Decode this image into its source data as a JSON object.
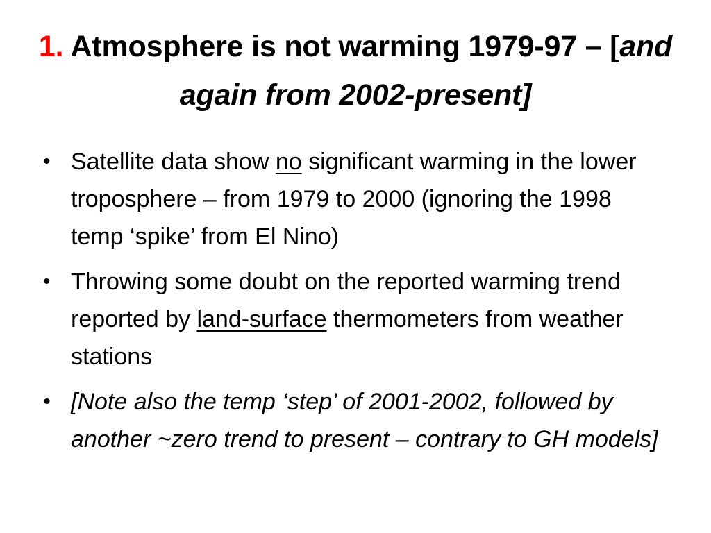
{
  "slide": {
    "title": {
      "number": "1.",
      "main": "Atmosphere is not warming 1979-97 – [",
      "italic": "and again from 2002-present]"
    },
    "bullets": [
      {
        "marker": "•",
        "pre": "Satellite data show ",
        "underlined": "no",
        "post": " significant warming in the lower troposphere – from 1979 to 2000 (ignoring the 1998 temp ‘spike’ from El Nino)"
      },
      {
        "marker": "•",
        "pre": "Throwing some doubt on the reported warming trend reported by ",
        "underlined": "land-surface",
        "post": " thermometers from weather stations"
      },
      {
        "marker": "•",
        "text": "[Note also the temp ‘step’ of 2001-2002, followed by another ~zero trend to present – contrary to GH models]"
      }
    ]
  }
}
